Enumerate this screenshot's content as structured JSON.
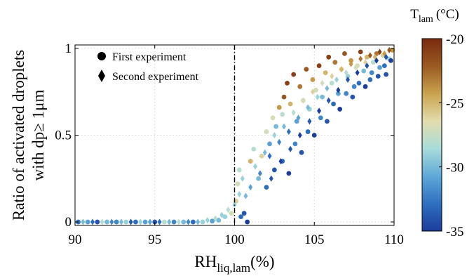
{
  "chart_data": {
    "type": "scatter",
    "xlabel": {
      "main": "RH",
      "sub": "liq,lam",
      "unit": "(%)"
    },
    "ylabel": {
      "line1": "Ratio of activated droplets",
      "line2": "with dp≥ 1μm"
    },
    "xlim": [
      90,
      110
    ],
    "ylim": [
      -0.02,
      1.02
    ],
    "x_ticks": [
      90,
      95,
      100,
      105,
      110
    ],
    "y_ticks": [
      0,
      0.5,
      1
    ],
    "y_tick_labels": [
      "0",
      "0.5",
      "1"
    ],
    "grid": true,
    "reference_line": {
      "x": 100,
      "style": "dash-dot"
    },
    "legend": {
      "placement": "top-left",
      "entries": [
        {
          "marker": "circle",
          "label": "First experiment"
        },
        {
          "marker": "diamond",
          "label": "Second experiment"
        }
      ]
    },
    "colorbar": {
      "title_main": "T",
      "title_sub": "lam",
      "title_unit": "(°C)",
      "range": [
        -35,
        -20
      ],
      "ticks": [
        -20,
        -25,
        -30,
        -35
      ],
      "tick_labels": [
        "-20",
        "-25",
        "-30",
        "-35"
      ],
      "colormap": [
        "#1c3d9c",
        "#2f6fc0",
        "#5fa8d8",
        "#a8dcd9",
        "#e3dcae",
        "#c9a24d",
        "#9a5a22",
        "#7a2a0e"
      ]
    },
    "series": [
      {
        "name": "First experiment",
        "marker": "circle",
        "points": [
          [
            90.2,
            0.0,
            -33
          ],
          [
            90.8,
            0.0,
            -31
          ],
          [
            91.4,
            0.0,
            -34
          ],
          [
            92.0,
            0.0,
            -30
          ],
          [
            92.6,
            0.0,
            -32
          ],
          [
            93.2,
            0.0,
            -29
          ],
          [
            93.8,
            0.0,
            -33
          ],
          [
            94.4,
            0.0,
            -31
          ],
          [
            95.0,
            0.0,
            -34
          ],
          [
            95.6,
            0.0,
            -28
          ],
          [
            96.2,
            0.0,
            -32
          ],
          [
            96.8,
            0.0,
            -30
          ],
          [
            97.4,
            0.0,
            -33
          ],
          [
            98.0,
            0.0,
            -29
          ],
          [
            98.6,
            0.005,
            -31
          ],
          [
            99.0,
            0.01,
            -30
          ],
          [
            99.4,
            0.03,
            -29
          ],
          [
            99.8,
            0.05,
            -27
          ],
          [
            100.1,
            0.12,
            -26
          ],
          [
            100.2,
            0.22,
            -27
          ],
          [
            100.3,
            0.3,
            -28
          ],
          [
            100.4,
            0.03,
            -33
          ],
          [
            100.6,
            0.05,
            -34
          ],
          [
            100.8,
            0.0,
            -35
          ],
          [
            101.0,
            0.35,
            -25
          ],
          [
            101.2,
            0.42,
            -28
          ],
          [
            101.5,
            0.25,
            -30
          ],
          [
            101.7,
            0.38,
            -26
          ],
          [
            102.0,
            0.52,
            -27
          ],
          [
            102.2,
            0.45,
            -31
          ],
          [
            102.4,
            0.6,
            -27
          ],
          [
            102.6,
            0.55,
            -30
          ],
          [
            102.8,
            0.66,
            -24
          ],
          [
            103.0,
            0.62,
            -28
          ],
          [
            103.1,
            0.72,
            -22
          ],
          [
            103.3,
            0.8,
            -21
          ],
          [
            103.5,
            0.68,
            -25
          ],
          [
            103.7,
            0.85,
            -21
          ],
          [
            103.9,
            0.58,
            -31
          ],
          [
            104.1,
            0.78,
            -23
          ],
          [
            104.3,
            0.7,
            -27
          ],
          [
            104.5,
            0.88,
            -22
          ],
          [
            104.7,
            0.65,
            -29
          ],
          [
            104.9,
            0.82,
            -24
          ],
          [
            105.1,
            0.76,
            -27
          ],
          [
            105.3,
            0.9,
            -21
          ],
          [
            105.5,
            0.72,
            -30
          ],
          [
            105.7,
            0.86,
            -25
          ],
          [
            105.9,
            0.95,
            -21
          ],
          [
            106.1,
            0.8,
            -28
          ],
          [
            106.3,
            0.92,
            -23
          ],
          [
            106.5,
            0.74,
            -31
          ],
          [
            106.7,
            0.88,
            -26
          ],
          [
            106.9,
            0.97,
            -22
          ],
          [
            107.1,
            0.84,
            -29
          ],
          [
            107.3,
            0.93,
            -24
          ],
          [
            107.5,
            0.78,
            -32
          ],
          [
            107.7,
            0.9,
            -27
          ],
          [
            107.9,
            0.98,
            -21
          ],
          [
            108.1,
            0.87,
            -30
          ],
          [
            108.3,
            0.95,
            -25
          ],
          [
            108.5,
            0.82,
            -33
          ],
          [
            108.7,
            0.92,
            -28
          ],
          [
            108.9,
            0.97,
            -23
          ],
          [
            109.1,
            0.89,
            -31
          ],
          [
            109.3,
            0.96,
            -26
          ],
          [
            109.5,
            0.85,
            -34
          ],
          [
            109.7,
            0.94,
            -29
          ],
          [
            109.9,
            0.99,
            -24
          ],
          [
            102.0,
            0.2,
            -33
          ],
          [
            102.5,
            0.3,
            -34
          ],
          [
            103.0,
            0.35,
            -33
          ],
          [
            103.4,
            0.28,
            -35
          ],
          [
            103.8,
            0.45,
            -32
          ],
          [
            104.2,
            0.4,
            -34
          ],
          [
            104.6,
            0.52,
            -33
          ],
          [
            105.0,
            0.5,
            -35
          ],
          [
            105.4,
            0.6,
            -32
          ],
          [
            105.8,
            0.58,
            -34
          ],
          [
            106.2,
            0.68,
            -33
          ],
          [
            106.6,
            0.65,
            -35
          ],
          [
            107.0,
            0.74,
            -32
          ],
          [
            107.4,
            0.72,
            -34
          ],
          [
            107.8,
            0.8,
            -33
          ],
          [
            108.2,
            0.78,
            -35
          ],
          [
            108.6,
            0.86,
            -32
          ],
          [
            109.0,
            0.84,
            -34
          ],
          [
            109.4,
            0.9,
            -33
          ],
          [
            109.8,
            0.93,
            -35
          ]
        ]
      },
      {
        "name": "Second experiment",
        "marker": "diamond",
        "points": [
          [
            90.5,
            0.0,
            -30
          ],
          [
            91.1,
            0.0,
            -33
          ],
          [
            91.7,
            0.0,
            -28
          ],
          [
            92.3,
            0.0,
            -32
          ],
          [
            92.9,
            0.0,
            -30
          ],
          [
            93.5,
            0.0,
            -34
          ],
          [
            94.1,
            0.0,
            -29
          ],
          [
            94.7,
            0.0,
            -31
          ],
          [
            95.3,
            0.0,
            -33
          ],
          [
            95.9,
            0.0,
            -30
          ],
          [
            96.5,
            0.0,
            -28
          ],
          [
            97.1,
            0.0,
            -32
          ],
          [
            97.7,
            0.0,
            -30
          ],
          [
            98.3,
            0.01,
            -29
          ],
          [
            98.8,
            0.02,
            -28
          ],
          [
            99.2,
            0.04,
            -29
          ],
          [
            99.6,
            0.07,
            -28
          ],
          [
            100.0,
            0.1,
            -29
          ],
          [
            100.3,
            0.16,
            -29
          ],
          [
            100.5,
            0.25,
            -29
          ],
          [
            100.7,
            0.15,
            -30
          ],
          [
            101.0,
            0.2,
            -31
          ],
          [
            101.3,
            0.32,
            -29
          ],
          [
            101.6,
            0.28,
            -32
          ],
          [
            101.9,
            0.4,
            -30
          ],
          [
            102.2,
            0.38,
            -33
          ],
          [
            102.5,
            0.5,
            -29
          ],
          [
            102.8,
            0.46,
            -32
          ],
          [
            103.1,
            0.55,
            -30
          ],
          [
            103.4,
            0.52,
            -33
          ],
          [
            103.7,
            0.63,
            -28
          ],
          [
            104.0,
            0.6,
            -31
          ],
          [
            104.3,
            0.7,
            -27
          ],
          [
            104.6,
            0.66,
            -30
          ],
          [
            104.9,
            0.75,
            -26
          ],
          [
            105.2,
            0.72,
            -29
          ],
          [
            105.5,
            0.8,
            -27
          ],
          [
            105.8,
            0.77,
            -30
          ],
          [
            106.1,
            0.84,
            -26
          ],
          [
            106.4,
            0.82,
            -29
          ],
          [
            106.7,
            0.88,
            -25
          ],
          [
            107.0,
            0.86,
            -28
          ],
          [
            107.3,
            0.91,
            -24
          ],
          [
            107.6,
            0.89,
            -27
          ],
          [
            107.9,
            0.94,
            -23
          ],
          [
            108.2,
            0.92,
            -26
          ],
          [
            108.5,
            0.96,
            -22
          ],
          [
            108.8,
            0.95,
            -25
          ],
          [
            109.1,
            0.98,
            -21
          ],
          [
            109.4,
            0.97,
            -24
          ],
          [
            109.7,
            0.99,
            -22
          ],
          [
            102.3,
            0.25,
            -34
          ],
          [
            102.9,
            0.35,
            -35
          ],
          [
            103.5,
            0.42,
            -34
          ],
          [
            104.1,
            0.5,
            -35
          ],
          [
            104.7,
            0.58,
            -34
          ],
          [
            105.3,
            0.64,
            -35
          ],
          [
            105.9,
            0.7,
            -34
          ],
          [
            106.5,
            0.76,
            -35
          ],
          [
            107.1,
            0.82,
            -34
          ],
          [
            107.7,
            0.86,
            -35
          ],
          [
            108.3,
            0.9,
            -34
          ],
          [
            108.9,
            0.93,
            -35
          ],
          [
            109.5,
            0.95,
            -34
          ]
        ]
      }
    ]
  }
}
